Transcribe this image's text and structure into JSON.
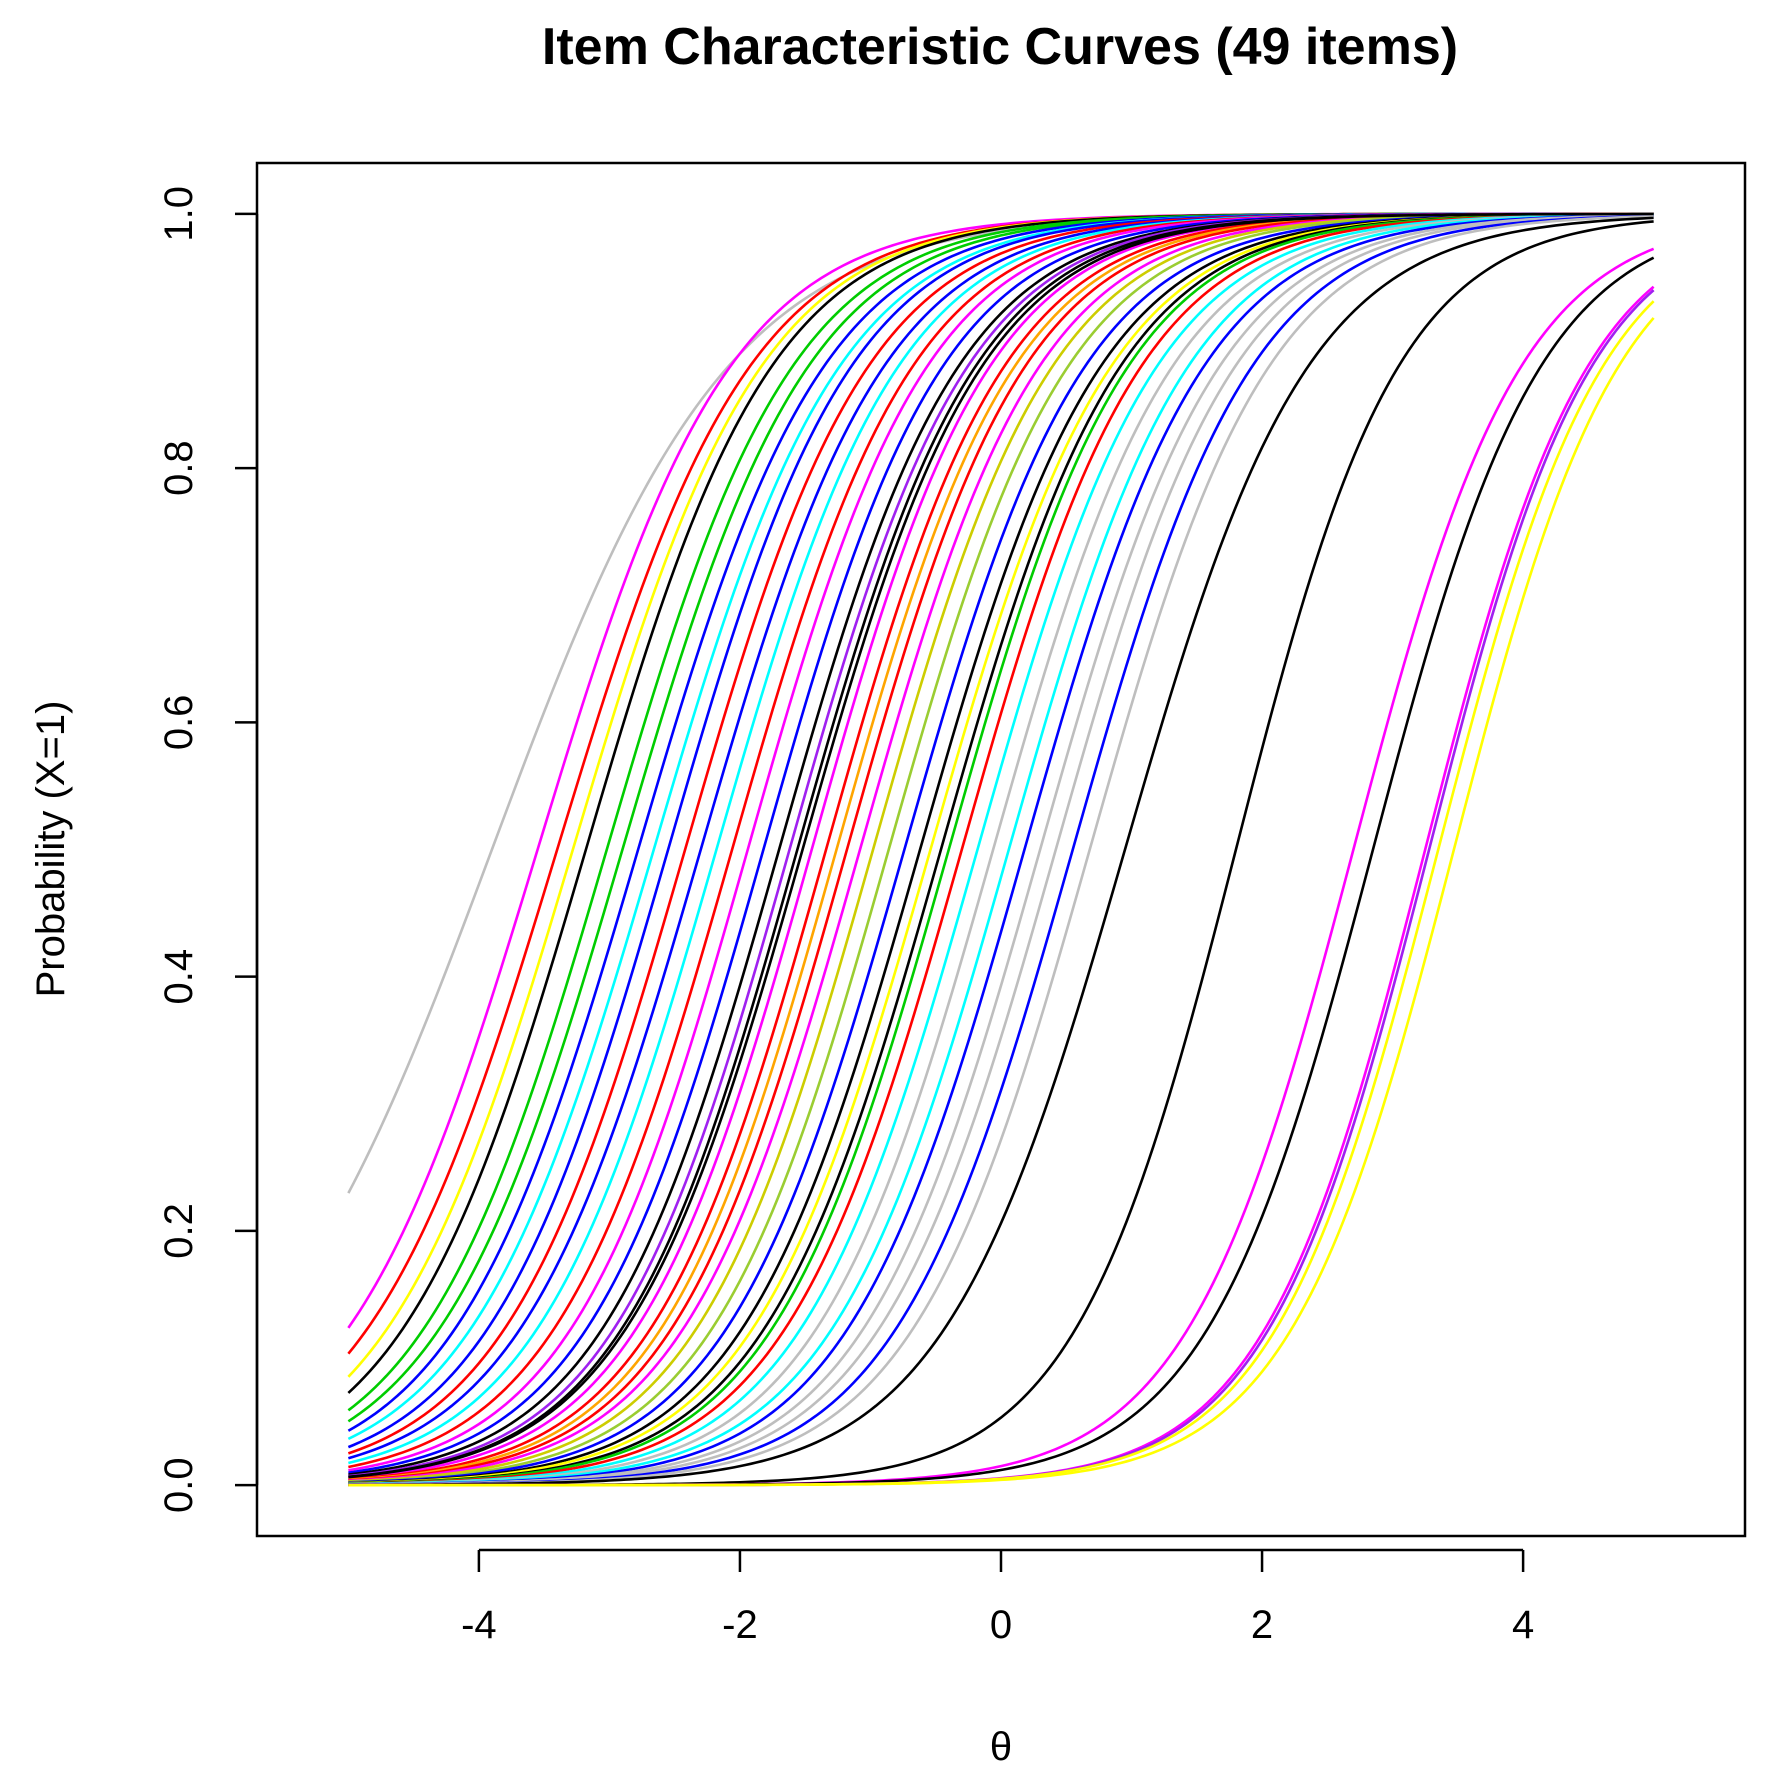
{
  "chart_data": {
    "type": "line",
    "title": "Item Characteristic Curves (49 items)",
    "xlabel": "θ",
    "ylabel": "Probability (X=1)",
    "xlim": [
      -5.7,
      5.7
    ],
    "ylim": [
      -0.04,
      1.04
    ],
    "x_range": [
      -5,
      5
    ],
    "xticks": [
      -4,
      -2,
      0,
      2,
      4
    ],
    "xtick_labels": [
      "-4",
      "-2",
      "0",
      "2",
      "4"
    ],
    "yticks": [
      0.0,
      0.2,
      0.4,
      0.6,
      0.8,
      1.0
    ],
    "ytick_labels": [
      "0.0",
      "0.2",
      "0.4",
      "0.6",
      "0.8",
      "1.0"
    ],
    "grid": false,
    "legend": "none",
    "model": "logistic: P = 1 / (1 + exp(-a (θ - b)))",
    "series": [
      {
        "color": "#bebebe",
        "a": 1.1,
        "b": -3.9
      },
      {
        "color": "#ff00ff",
        "a": 1.35,
        "b": -3.55
      },
      {
        "color": "#ff0000",
        "a": 1.35,
        "b": -3.4
      },
      {
        "color": "#ffff00",
        "a": 1.38,
        "b": -3.28
      },
      {
        "color": "#000000",
        "a": 1.4,
        "b": -3.18
      },
      {
        "color": "#00cd00",
        "a": 1.4,
        "b": -3.02
      },
      {
        "color": "#00cd00",
        "a": 1.4,
        "b": -2.9
      },
      {
        "color": "#0000ff",
        "a": 1.4,
        "b": -2.78
      },
      {
        "color": "#00ffff",
        "a": 1.4,
        "b": -2.66
      },
      {
        "color": "#0000ff",
        "a": 1.42,
        "b": -2.55
      },
      {
        "color": "#ff0000",
        "a": 1.42,
        "b": -2.42
      },
      {
        "color": "#0000ff",
        "a": 1.42,
        "b": -2.3
      },
      {
        "color": "#00ffff",
        "a": 1.43,
        "b": -2.18
      },
      {
        "color": "#ff0000",
        "a": 1.44,
        "b": -2.06
      },
      {
        "color": "#ff00ff",
        "a": 1.45,
        "b": -1.94
      },
      {
        "color": "#0000ff",
        "a": 1.45,
        "b": -1.82
      },
      {
        "color": "#000000",
        "a": 1.45,
        "b": -1.7
      },
      {
        "color": "#a020f0",
        "a": 1.46,
        "b": -1.62
      },
      {
        "color": "#000000",
        "a": 1.46,
        "b": -1.56
      },
      {
        "color": "#ff00ff",
        "a": 1.46,
        "b": -1.45
      },
      {
        "color": "#ff0000",
        "a": 1.46,
        "b": -1.34
      },
      {
        "color": "#ffa500",
        "a": 1.46,
        "b": -1.26
      },
      {
        "color": "#ff0000",
        "a": 1.46,
        "b": -1.18
      },
      {
        "color": "#ff00ff",
        "a": 1.45,
        "b": -1.08
      },
      {
        "color": "#cdcd00",
        "a": 1.45,
        "b": -0.98
      },
      {
        "color": "#9acd32",
        "a": 1.45,
        "b": -0.86
      },
      {
        "color": "#0000ff",
        "a": 1.44,
        "b": -0.74
      },
      {
        "color": "#000000",
        "a": 1.44,
        "b": -0.62
      },
      {
        "color": "#ffff00",
        "a": 1.44,
        "b": -0.54
      },
      {
        "color": "#000000",
        "a": 1.45,
        "b": -0.46
      },
      {
        "color": "#00cd00",
        "a": 1.45,
        "b": -0.4
      },
      {
        "color": "#ff0000",
        "a": 1.45,
        "b": -0.3
      },
      {
        "color": "#00ffff",
        "a": 1.45,
        "b": -0.18
      },
      {
        "color": "#bebebe",
        "a": 1.45,
        "b": -0.06
      },
      {
        "color": "#00ffff",
        "a": 1.45,
        "b": 0.06
      },
      {
        "color": "#0000ff",
        "a": 1.45,
        "b": 0.18
      },
      {
        "color": "#bebebe",
        "a": 1.45,
        "b": 0.3
      },
      {
        "color": "#bebebe",
        "a": 1.45,
        "b": 0.42
      },
      {
        "color": "#0000ff",
        "a": 1.45,
        "b": 0.55
      },
      {
        "color": "#bebebe",
        "a": 1.45,
        "b": 0.68
      },
      {
        "color": "#000000",
        "a": 1.42,
        "b": 0.95
      },
      {
        "color": "#000000",
        "a": 1.6,
        "b": 1.8
      },
      {
        "color": "#ff00ff",
        "a": 1.55,
        "b": 2.7
      },
      {
        "color": "#000000",
        "a": 1.55,
        "b": 2.85
      },
      {
        "color": "#ff00ff",
        "a": 1.6,
        "b": 3.25
      },
      {
        "color": "#a020f0",
        "a": 1.6,
        "b": 3.28
      },
      {
        "color": "#ffff00",
        "a": 1.58,
        "b": 3.35
      },
      {
        "color": "#ffff00",
        "a": 1.58,
        "b": 3.47
      },
      {
        "color": "#000000",
        "a": 1.45,
        "b": -1.52
      }
    ]
  }
}
